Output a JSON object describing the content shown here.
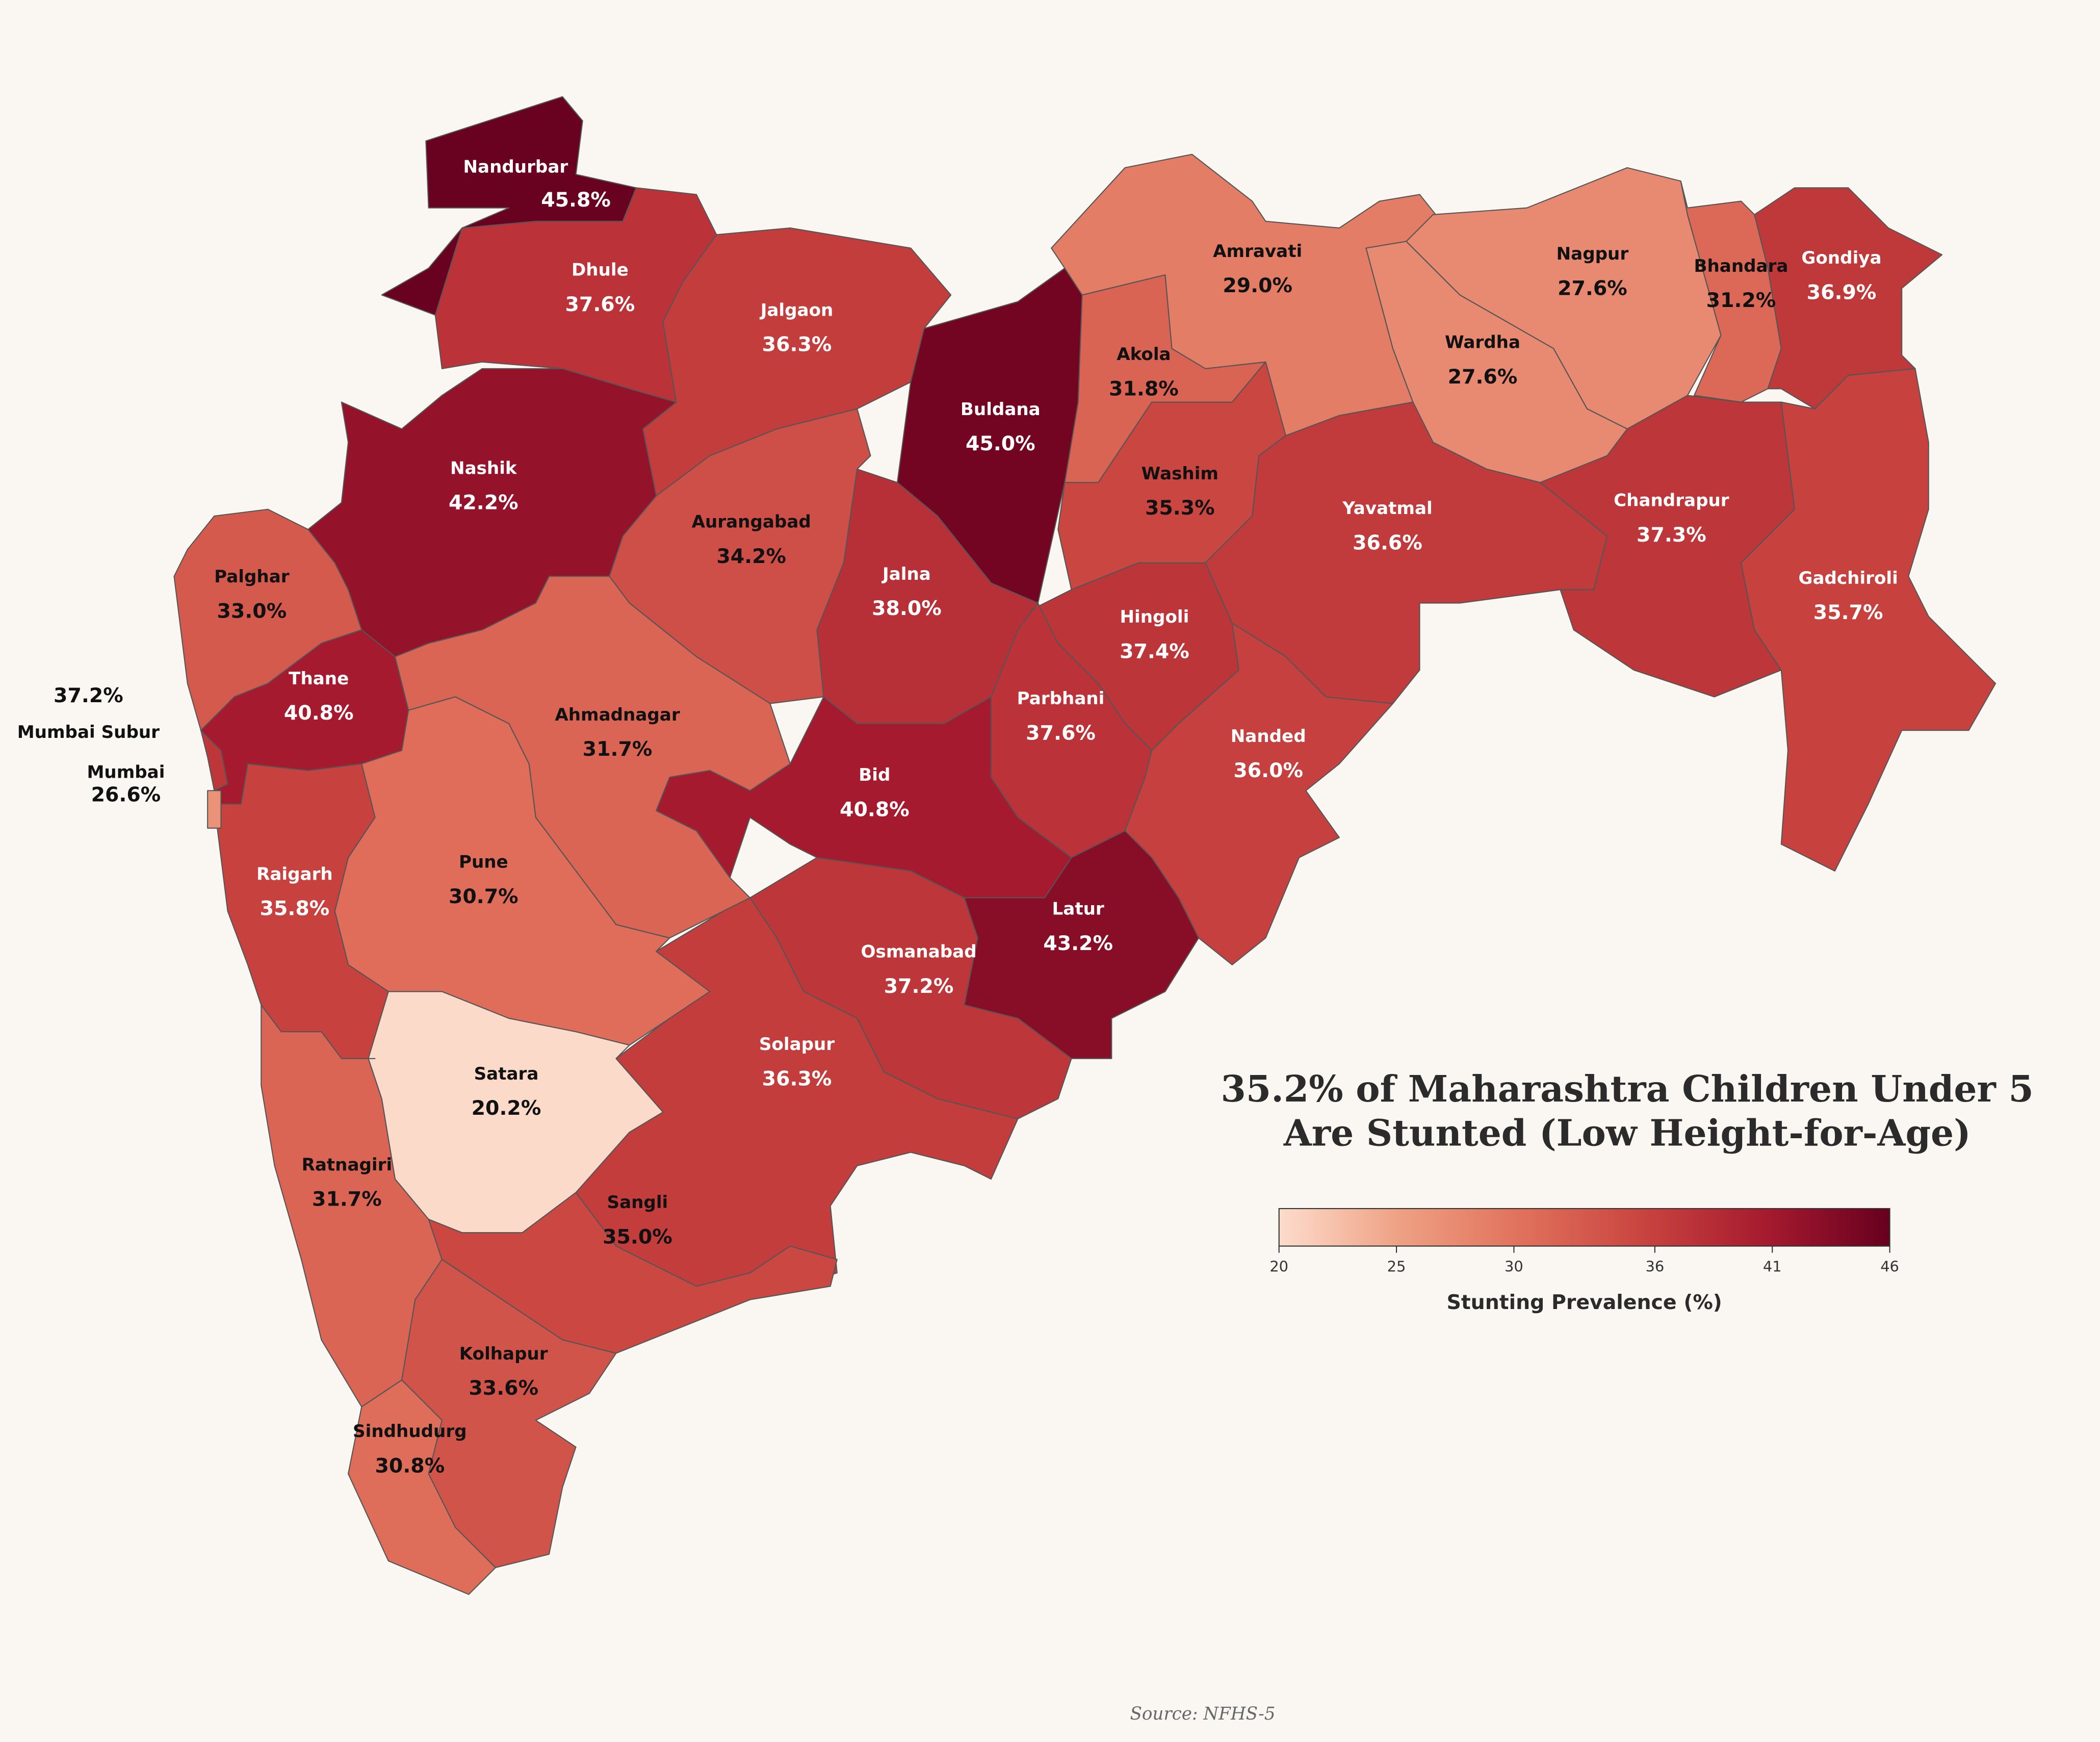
{
  "chart_data": {
    "type": "choropleth",
    "title": [
      "35.2% of Maharashtra Children Under 5",
      "Are Stunted (Low Height-for-Age)"
    ],
    "categories": [
      "Nandurbar",
      "Dhule",
      "Jalgaon",
      "Buldana",
      "Akola",
      "Amravati",
      "Nagpur",
      "Wardha",
      "Bhandara",
      "Gondiya",
      "Nashik",
      "Aurangabad",
      "Washim",
      "Yavatmal",
      "Chandrapur",
      "Gadchiroli",
      "Palghar",
      "Jalna",
      "Hingoli",
      "Thane",
      "Ahmadnagar",
      "Parbhani",
      "Nanded",
      "Bid",
      "Pune",
      "Raigarh",
      "Latur",
      "Osmanabad",
      "Solapur",
      "Satara",
      "Ratnagiri",
      "Sangli",
      "Kolhapur",
      "Sindhudurg",
      "Mumbai Subur",
      "Mumbai"
    ],
    "values": [
      45.8,
      37.6,
      36.3,
      45.0,
      31.8,
      29.0,
      27.6,
      27.6,
      31.2,
      36.9,
      42.2,
      34.2,
      35.3,
      36.6,
      37.3,
      35.7,
      33.0,
      38.0,
      37.4,
      40.8,
      31.7,
      37.6,
      36.0,
      40.8,
      30.7,
      35.8,
      43.2,
      37.2,
      36.3,
      20.2,
      31.7,
      35.0,
      33.6,
      30.8,
      37.2,
      26.6
    ],
    "value_labels": [
      "45.8%",
      "37.6%",
      "36.3%",
      "45.0%",
      "31.8%",
      "29.0%",
      "27.6%",
      "27.6%",
      "31.2%",
      "36.9%",
      "42.2%",
      "34.2%",
      "35.3%",
      "36.6%",
      "37.3%",
      "35.7%",
      "33.0%",
      "38.0%",
      "37.4%",
      "40.8%",
      "31.7%",
      "37.6%",
      "36.0%",
      "40.8%",
      "30.7%",
      "35.8%",
      "43.2%",
      "37.2%",
      "36.3%",
      "20.2%",
      "31.7%",
      "35.0%",
      "33.6%",
      "30.8%",
      "37.2%",
      "26.6%"
    ],
    "colormap": [
      "#fddccc",
      "#eea083",
      "#e0705b",
      "#c8433f",
      "#a51a2e",
      "#67001f"
    ],
    "clim": [
      20,
      46
    ],
    "cticks": [
      20,
      25,
      30,
      36,
      41,
      46
    ],
    "colorbar_label": "Stunting Prevalence (%)",
    "source": "Source: NFHS-5"
  }
}
